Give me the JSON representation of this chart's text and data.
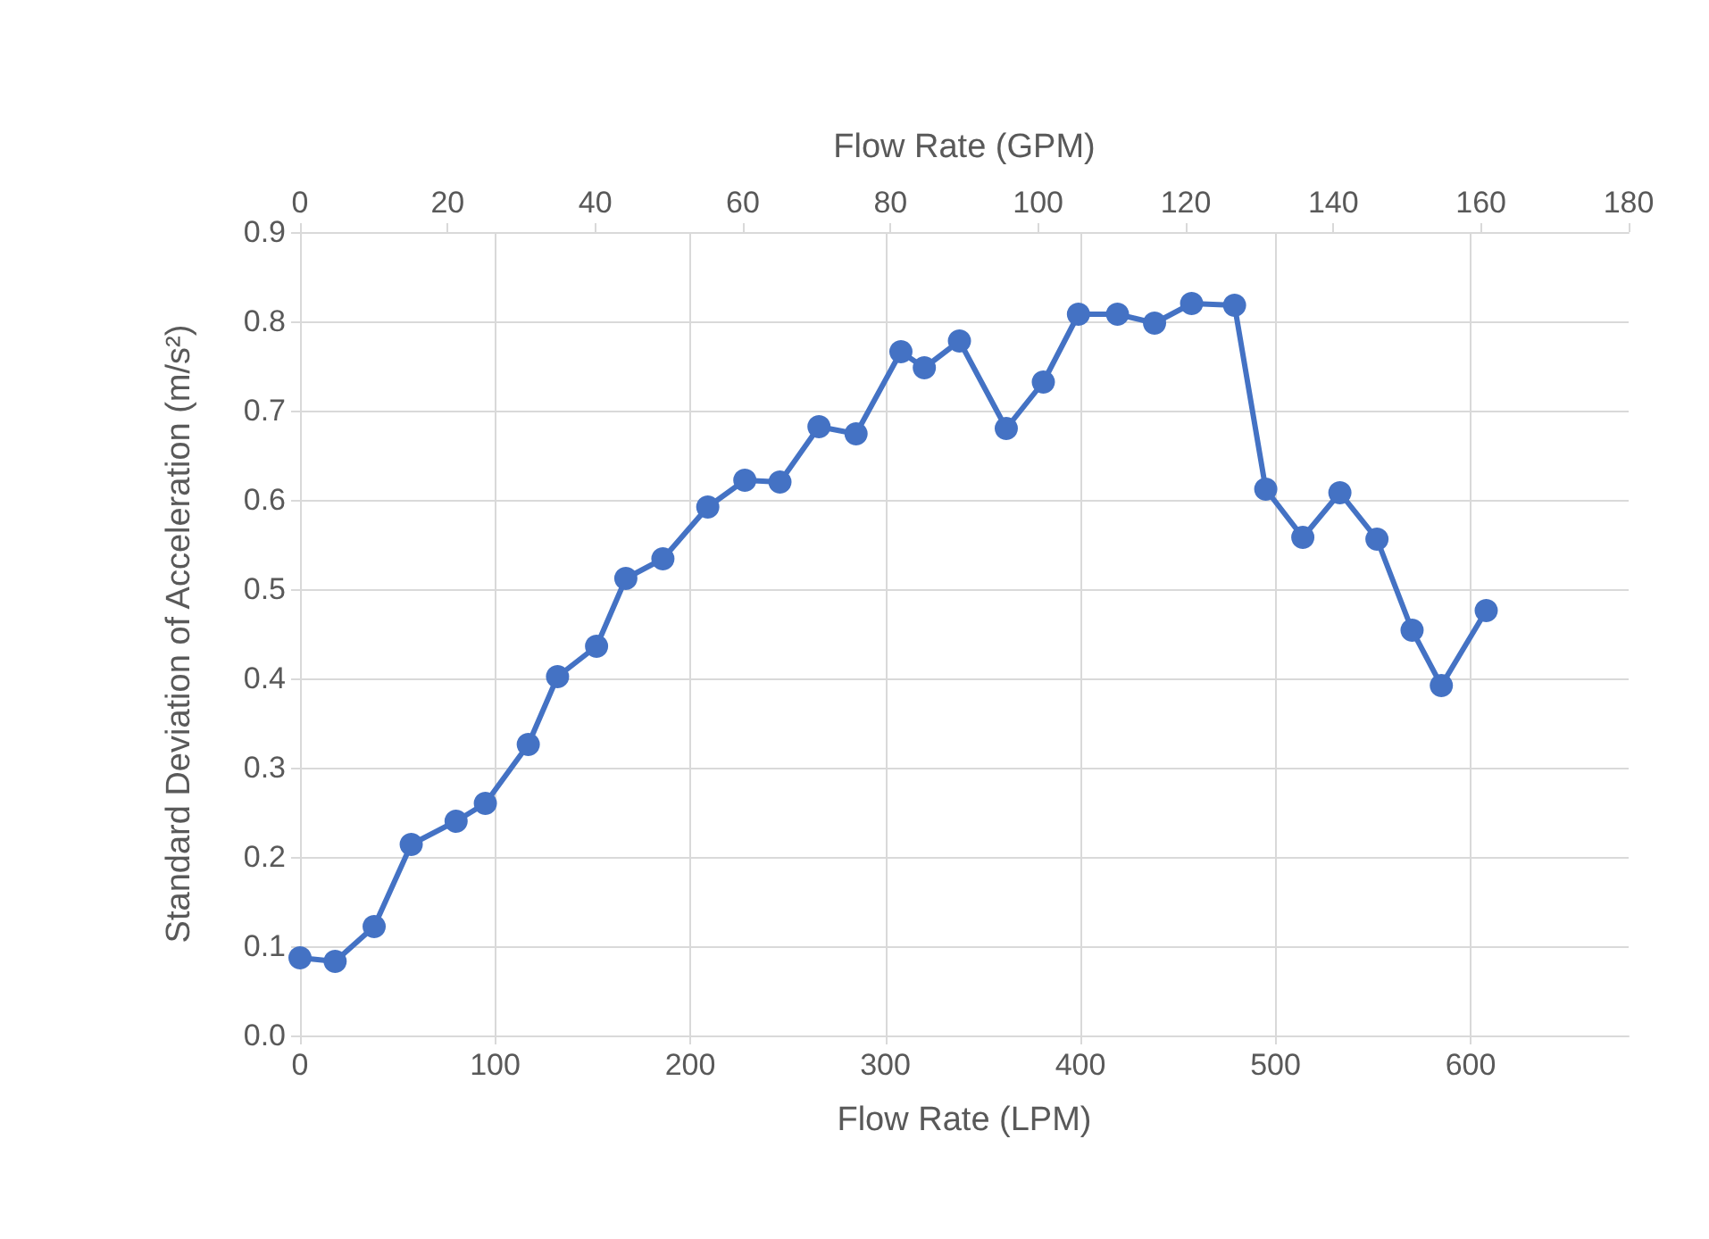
{
  "chart_data": {
    "type": "line",
    "xlabel": "Flow Rate (LPM)",
    "ylabel": "Standard Deviation of Acceleration (m/s²)",
    "x2label": "Flow Rate (GPM)",
    "x": [
      0,
      18,
      38,
      57,
      80,
      95,
      117,
      132,
      152,
      167,
      186,
      209,
      228,
      246,
      266,
      285,
      308,
      320,
      338,
      362,
      381,
      399,
      419,
      438,
      457,
      479,
      495,
      514,
      533,
      552,
      570,
      585,
      608
    ],
    "series": [
      {
        "color": "#4472c4",
        "values": [
          0.087,
          0.083,
          0.122,
          0.214,
          0.24,
          0.26,
          0.326,
          0.402,
          0.436,
          0.512,
          0.534,
          0.592,
          0.622,
          0.62,
          0.682,
          0.674,
          0.766,
          0.748,
          0.778,
          0.68,
          0.732,
          0.808,
          0.808,
          0.798,
          0.82,
          0.818,
          0.612,
          0.558,
          0.608,
          0.556,
          0.454,
          0.392,
          0.476
        ]
      }
    ],
    "xlim": [
      0,
      681
    ],
    "xticks": [
      0,
      100,
      200,
      300,
      400,
      500,
      600
    ],
    "x2lim": [
      0,
      180
    ],
    "x2ticks": [
      0,
      20,
      40,
      60,
      80,
      100,
      120,
      140,
      160,
      180
    ],
    "ylim": [
      0,
      0.9
    ],
    "yticks": [
      {
        "value": 0,
        "label": "0.0"
      },
      {
        "value": 0.1,
        "label": "0.1"
      },
      {
        "value": 0.2,
        "label": "0.2"
      },
      {
        "value": 0.3,
        "label": "0.3"
      },
      {
        "value": 0.4,
        "label": "0.4"
      },
      {
        "value": 0.5,
        "label": "0.5"
      },
      {
        "value": 0.6,
        "label": "0.6"
      },
      {
        "value": 0.7,
        "label": "0.7"
      },
      {
        "value": 0.8,
        "label": "0.8"
      },
      {
        "value": 0.9,
        "label": "0.9"
      }
    ],
    "grid": true,
    "marker": "circle",
    "line_style": "solid"
  }
}
